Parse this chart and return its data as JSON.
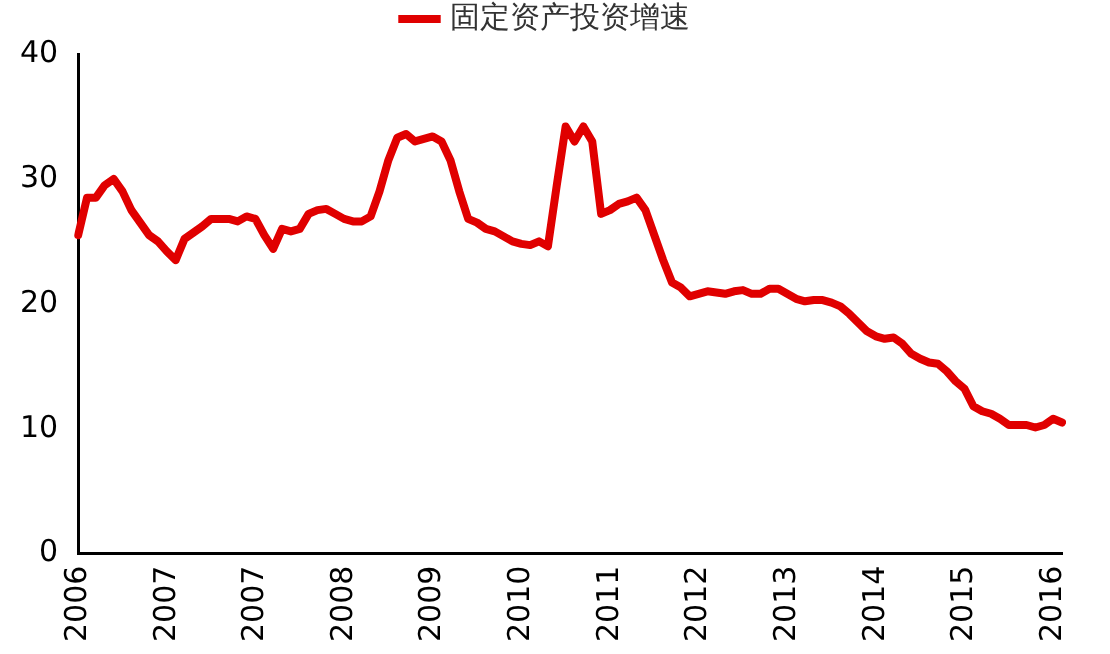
{
  "chart_data": {
    "type": "line",
    "categories": [
      "2006",
      null,
      null,
      null,
      null,
      null,
      null,
      null,
      null,
      null,
      "2007",
      null,
      null,
      null,
      null,
      null,
      null,
      null,
      null,
      null,
      "2007",
      null,
      null,
      null,
      null,
      null,
      null,
      null,
      null,
      null,
      "2008",
      null,
      null,
      null,
      null,
      null,
      null,
      null,
      null,
      null,
      "2009",
      null,
      null,
      null,
      null,
      null,
      null,
      null,
      null,
      null,
      "2010",
      null,
      null,
      null,
      null,
      null,
      null,
      null,
      null,
      null,
      "2011",
      null,
      null,
      null,
      null,
      null,
      null,
      null,
      null,
      null,
      "2012",
      null,
      null,
      null,
      null,
      null,
      null,
      null,
      null,
      null,
      "2013",
      null,
      null,
      null,
      null,
      null,
      null,
      null,
      null,
      null,
      "2014",
      null,
      null,
      null,
      null,
      null,
      null,
      null,
      null,
      null,
      "2015",
      null,
      null,
      null,
      null,
      null,
      null,
      null,
      null,
      null,
      "2016",
      null
    ],
    "series": [
      {
        "name": "固定资产投资增速",
        "color": "#e00000",
        "values": [
          25.5,
          28.5,
          28.5,
          29.5,
          30,
          29,
          27.5,
          26.5,
          25.5,
          25,
          24.2,
          23.5,
          25.2,
          25.7,
          26.2,
          26.8,
          26.8,
          26.8,
          26.6,
          27,
          26.8,
          25.5,
          24.4,
          26,
          25.8,
          26,
          27.2,
          27.5,
          27.6,
          27.2,
          26.8,
          26.6,
          26.6,
          27,
          29,
          31.5,
          33.3,
          33.6,
          33,
          33.2,
          33.4,
          33,
          31.5,
          29,
          26.8,
          26.5,
          26,
          25.8,
          25.4,
          25,
          24.8,
          24.7,
          25,
          24.6,
          29.5,
          34.2,
          33,
          34.2,
          33,
          27.2,
          27.5,
          28,
          28.2,
          28.5,
          27.5,
          25.5,
          23.5,
          21.7,
          21.3,
          20.6,
          20.8,
          21,
          20.9,
          20.8,
          21,
          21.1,
          20.8,
          20.8,
          21.2,
          21.2,
          20.8,
          20.4,
          20.2,
          20.3,
          20.3,
          20.1,
          19.8,
          19.2,
          18.5,
          17.8,
          17.4,
          17.2,
          17.3,
          16.8,
          16,
          15.6,
          15.3,
          15.2,
          14.6,
          13.8,
          13.2,
          11.8,
          11.4,
          11.2,
          10.8,
          10.3,
          10.3,
          10.3,
          10.1,
          10.3,
          10.8,
          10.5
        ]
      }
    ],
    "ylim": [
      0,
      40
    ],
    "yticks": [
      0,
      10,
      20,
      30,
      40
    ],
    "grid": false,
    "legend": "top",
    "marker": "none",
    "line_style": "solid"
  }
}
